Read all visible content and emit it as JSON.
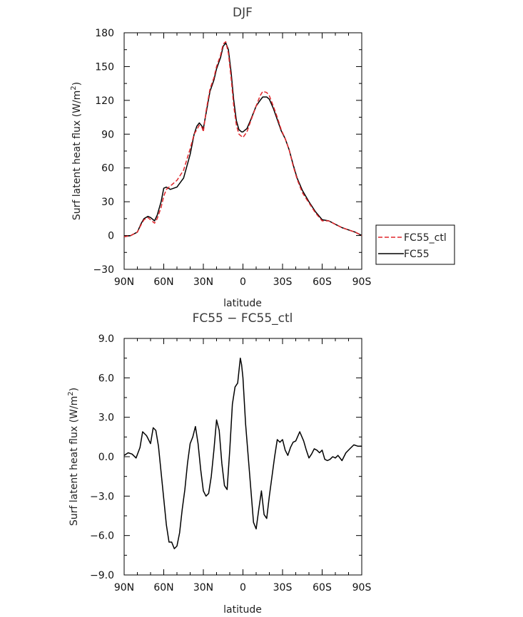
{
  "chart_data": [
    {
      "type": "line",
      "title": "DJF",
      "xlabel": "latitude",
      "ylabel": "Surf latent heat flux (W/m",
      "ylabel_superscript": "2",
      "ylabel_suffix": ")",
      "xlim": [
        90,
        -90
      ],
      "ylim": [
        -30,
        180
      ],
      "xticks": [
        90,
        60,
        30,
        0,
        -30,
        -60,
        -90
      ],
      "xtick_labels": [
        "90N",
        "60N",
        "30N",
        "0",
        "30S",
        "60S",
        "90S"
      ],
      "yticks": [
        -30,
        0,
        30,
        60,
        90,
        120,
        150,
        180
      ],
      "ytick_labels": [
        "−30",
        "0",
        "30",
        "60",
        "90",
        "120",
        "150",
        "180"
      ],
      "legend_position": "right-outside",
      "series": [
        {
          "name": "FC55_ctl",
          "color": "#e0262b",
          "dash": "dashed",
          "x": [
            90,
            85,
            80,
            77,
            75,
            72,
            70,
            67,
            65,
            62,
            60,
            58,
            55,
            50,
            45,
            40,
            37,
            35,
            33,
            31,
            30,
            28,
            25,
            22,
            20,
            17,
            15,
            13,
            11,
            9,
            7,
            5,
            3,
            1,
            0,
            -3,
            -6,
            -10,
            -13,
            -15,
            -18,
            -20,
            -23,
            -26,
            -29,
            -32,
            -35,
            -38,
            -41,
            -45,
            -50,
            -55,
            -60,
            -65,
            -70,
            -75,
            -80,
            -85,
            -90
          ],
          "y": [
            -1,
            0,
            3,
            10,
            14,
            16,
            14,
            11,
            15,
            25,
            35,
            41,
            44,
            49,
            58,
            77,
            90,
            94,
            98,
            96,
            92,
            110,
            130,
            140,
            150,
            160,
            170,
            172,
            162,
            140,
            115,
            98,
            90,
            88,
            87,
            92,
            102,
            115,
            124,
            128,
            127,
            124,
            115,
            105,
            94,
            86,
            76,
            62,
            50,
            38,
            29,
            20,
            13,
            13,
            10,
            7,
            5,
            3,
            0
          ]
        },
        {
          "name": "FC55",
          "color": "#000000",
          "dash": "solid",
          "x": [
            90,
            85,
            80,
            77,
            75,
            72,
            70,
            67,
            65,
            62,
            60,
            58,
            55,
            50,
            45,
            40,
            37,
            35,
            33,
            31,
            30,
            28,
            25,
            22,
            20,
            17,
            15,
            13,
            11,
            9,
            7,
            5,
            3,
            1,
            0,
            -3,
            -6,
            -10,
            -13,
            -15,
            -18,
            -20,
            -23,
            -26,
            -29,
            -32,
            -35,
            -38,
            -41,
            -45,
            -50,
            -55,
            -60,
            -65,
            -70,
            -75,
            -80,
            -85,
            -90
          ],
          "y": [
            -1,
            0,
            3,
            11,
            15,
            17,
            16,
            13,
            18,
            30,
            42,
            43,
            41,
            43,
            51,
            72,
            90,
            97,
            100,
            97,
            95,
            108,
            128,
            138,
            148,
            158,
            168,
            171,
            165,
            145,
            120,
            102,
            94,
            92,
            92,
            95,
            103,
            115,
            120,
            123,
            123,
            121,
            113,
            103,
            93,
            86,
            76,
            63,
            51,
            40,
            30,
            21,
            14,
            13,
            10,
            7,
            5,
            3,
            0
          ]
        }
      ]
    },
    {
      "type": "line",
      "title": "FC55 − FC55_ctl",
      "xlabel": "latitude",
      "ylabel": "Surf latent heat flux (W/m",
      "ylabel_superscript": "2",
      "ylabel_suffix": ")",
      "xlim": [
        90,
        -90
      ],
      "ylim": [
        -9,
        9
      ],
      "xticks": [
        90,
        60,
        30,
        0,
        -30,
        -60,
        -90
      ],
      "xtick_labels": [
        "90N",
        "60N",
        "30N",
        "0",
        "30S",
        "60S",
        "90S"
      ],
      "yticks": [
        -9,
        -6,
        -3,
        0,
        3,
        6,
        9
      ],
      "ytick_labels": [
        "−9.0",
        "−6.0",
        "−3.0",
        "0.0",
        "3.0",
        "6.0",
        "9.0"
      ],
      "series": [
        {
          "name": "",
          "color": "#000000",
          "dash": "solid",
          "x": [
            90,
            87,
            84,
            81,
            78,
            76,
            73,
            70,
            68,
            66,
            64,
            62,
            60,
            58,
            56,
            54,
            52,
            50,
            48,
            46,
            44,
            42,
            40,
            38,
            36,
            34,
            32,
            30,
            28,
            26,
            24,
            22,
            20,
            18,
            16,
            14,
            12,
            10,
            8,
            6,
            4,
            2,
            1,
            0,
            -2,
            -4,
            -6,
            -8,
            -10,
            -12,
            -14,
            -16,
            -18,
            -20,
            -22,
            -24,
            -26,
            -28,
            -30,
            -32,
            -34,
            -36,
            -38,
            -40,
            -43,
            -46,
            -48,
            -50,
            -52,
            -54,
            -56,
            -58,
            -60,
            -62,
            -64,
            -66,
            -68,
            -70,
            -72,
            -75,
            -78,
            -81,
            -84,
            -87,
            -90
          ],
          "y": [
            0.1,
            0.3,
            0.2,
            -0.1,
            0.7,
            1.9,
            1.6,
            1.0,
            2.2,
            2.0,
            0.8,
            -1.2,
            -3.2,
            -5.2,
            -6.5,
            -6.5,
            -7.0,
            -6.8,
            -5.8,
            -4.0,
            -2.5,
            -0.5,
            1.0,
            1.5,
            2.3,
            1.0,
            -1.0,
            -2.6,
            -3.0,
            -2.8,
            -1.5,
            0.5,
            2.8,
            2.0,
            -0.5,
            -2.2,
            -2.5,
            0.5,
            4.0,
            5.3,
            5.6,
            7.5,
            7.0,
            6.0,
            2.5,
            0.0,
            -2.5,
            -5.0,
            -5.5,
            -4.0,
            -2.6,
            -4.4,
            -4.7,
            -3.0,
            -1.5,
            0.0,
            1.3,
            1.1,
            1.3,
            0.5,
            0.1,
            0.7,
            1.1,
            1.2,
            1.9,
            1.2,
            0.5,
            -0.1,
            0.2,
            0.6,
            0.5,
            0.3,
            0.5,
            -0.2,
            -0.3,
            -0.2,
            0.0,
            -0.1,
            0.1,
            -0.3,
            0.3,
            0.6,
            0.9,
            0.8,
            0.8
          ]
        }
      ]
    }
  ]
}
